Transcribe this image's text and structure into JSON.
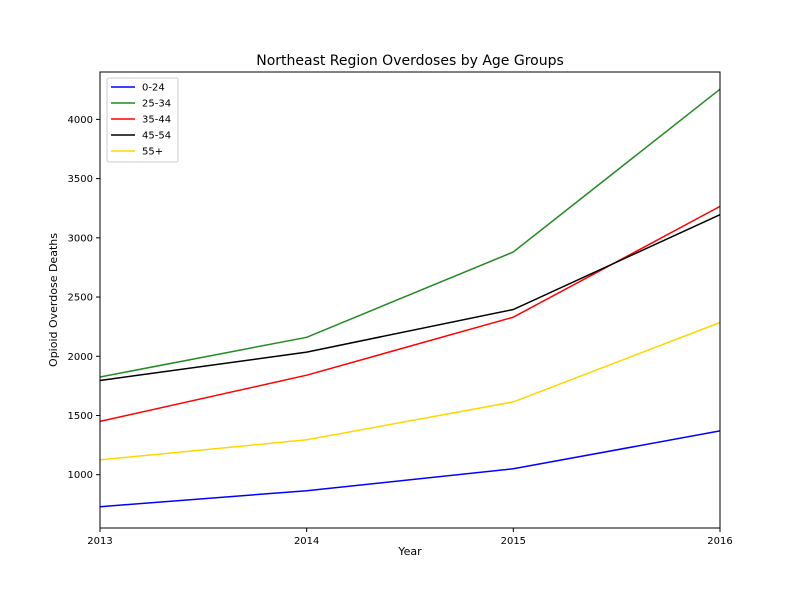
{
  "chart_data": {
    "type": "line",
    "title": "Northeast Region Overdoses by Age Groups",
    "xlabel": "Year",
    "ylabel": "Opioid Overdose Deaths",
    "x": [
      2013,
      2014,
      2015,
      2016
    ],
    "x_ticks": [
      "2013",
      "2014",
      "2015",
      "2016"
    ],
    "xlim": [
      2013,
      2016
    ],
    "ylim": [
      550,
      4400
    ],
    "y_ticks": [
      1000,
      1500,
      2000,
      2500,
      3000,
      3500,
      4000
    ],
    "y_tick_labels": [
      "1000",
      "1500",
      "2000",
      "2500",
      "3000",
      "3500",
      "4000"
    ],
    "grid": false,
    "legend_position": "upper-left",
    "series": [
      {
        "name": "0-24",
        "color": "#0000ff",
        "values": [
          730,
          865,
          1050,
          1370
        ]
      },
      {
        "name": "25-34",
        "color": "#228b22",
        "values": [
          1825,
          2160,
          2880,
          4255
        ]
      },
      {
        "name": "35-44",
        "color": "#ff0000",
        "values": [
          1450,
          1840,
          2330,
          3265
        ]
      },
      {
        "name": "45-54",
        "color": "#000000",
        "values": [
          1795,
          2035,
          2395,
          3195
        ]
      },
      {
        "name": "55+",
        "color": "#ffd700",
        "values": [
          1125,
          1295,
          1615,
          2285
        ]
      }
    ]
  }
}
